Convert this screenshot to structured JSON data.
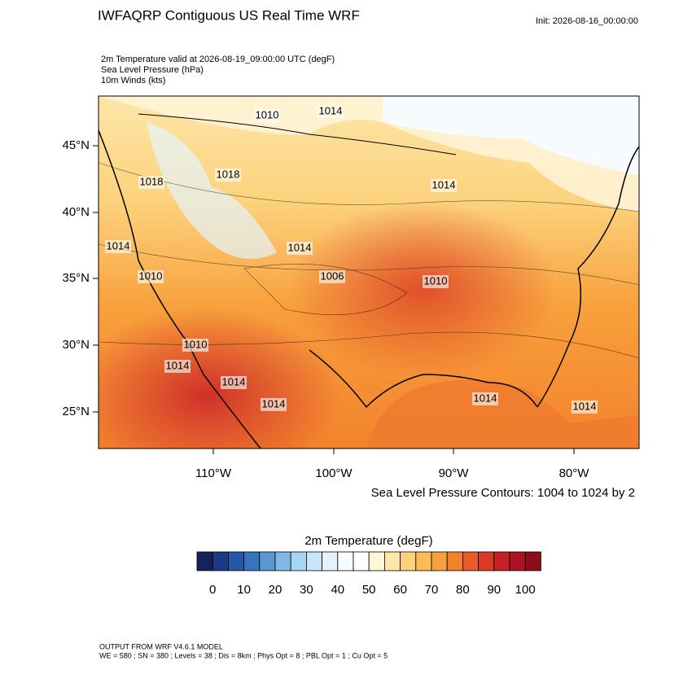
{
  "header": {
    "title": "IWFAQRP Contiguous US Real Time WRF",
    "init": "Init: 2026-08-16_00:00:00"
  },
  "fields": [
    "2m Temperature valid at 2026-08-19_09:00:00 UTC   (degF)",
    "Sea Level Pressure   (hPa)",
    "10m Winds   (kts)"
  ],
  "map": {
    "lat_labels": [
      "45°N",
      "40°N",
      "35°N",
      "30°N",
      "25°N"
    ],
    "lon_labels": [
      "110°W",
      "100°W",
      "90°W",
      "80°W"
    ],
    "contour_labels": [
      "1010",
      "1014",
      "1018",
      "1018",
      "1014",
      "1014",
      "1014",
      "1006",
      "1010",
      "1010",
      "1010",
      "1014",
      "1014",
      "1014",
      "1014",
      "1014"
    ],
    "contour_note": "Sea Level Pressure Contours: 1004 to 1024 by 2"
  },
  "colorbar": {
    "title": "2m Temperature  (degF)",
    "colors": [
      "#15235a",
      "#1c3a85",
      "#2657a5",
      "#3874bd",
      "#5a98d2",
      "#80b9e6",
      "#a6d6f3",
      "#c7e7f7",
      "#e4f3fb",
      "#f7fbfd",
      "#ffffff",
      "#fff5d9",
      "#fde6a8",
      "#fcd27d",
      "#fbbb57",
      "#f8a03c",
      "#f3822c",
      "#e95c2a",
      "#d93a26",
      "#c42124",
      "#ab1420",
      "#8d0d1a"
    ],
    "labels": [
      "0",
      "10",
      "20",
      "30",
      "40",
      "50",
      "60",
      "70",
      "80",
      "90",
      "100"
    ]
  },
  "footer": {
    "model": "OUTPUT FROM WRF V4.6.1 MODEL",
    "settings": "WE = 580 ; SN = 380 ; Levels = 38 ; Dis = 8km ; Phys Opt = 8 ; PBL Opt = 1 ; Cu Opt = 5"
  }
}
